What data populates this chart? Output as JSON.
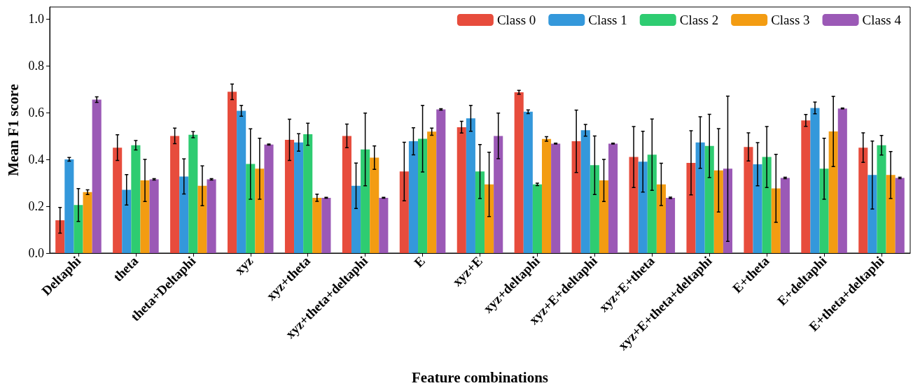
{
  "chart_data": {
    "type": "bar",
    "xlabel": "Feature combinations",
    "ylabel": "Mean F1 score",
    "categories": [
      "Deltaphi",
      "theta",
      "theta+Deltaphi",
      "xyz",
      "xyz+theta",
      "xyz+theta+deltaphi",
      "E",
      "xyz+E",
      "xyz+deltaphi",
      "xyz+E+deltaphi",
      "xyz+E+theta",
      "xyz+E+theta+deltaphi",
      "E+theta",
      "E+deltaphi",
      "E+theta+deltaphi"
    ],
    "series": [
      {
        "name": "Class 0",
        "color": "#e74c3c",
        "values": [
          0.14,
          0.45,
          0.5,
          0.688,
          0.483,
          0.5,
          0.348,
          0.537,
          0.686,
          0.477,
          0.41,
          0.385,
          0.453,
          0.566,
          0.45
        ],
        "errors": [
          0.055,
          0.055,
          0.033,
          0.033,
          0.088,
          0.05,
          0.125,
          0.025,
          0.008,
          0.133,
          0.13,
          0.137,
          0.06,
          0.025,
          0.063
        ]
      },
      {
        "name": "Class 1",
        "color": "#3498db",
        "values": [
          0.4,
          0.27,
          0.327,
          0.607,
          0.472,
          0.287,
          0.477,
          0.575,
          0.603,
          0.524,
          0.39,
          0.472,
          0.379,
          0.619,
          0.333
        ],
        "errors": [
          0.008,
          0.065,
          0.075,
          0.023,
          0.037,
          0.097,
          0.058,
          0.055,
          0.008,
          0.025,
          0.13,
          0.11,
          0.092,
          0.025,
          0.145
        ]
      },
      {
        "name": "Class 2",
        "color": "#2ecc71",
        "values": [
          0.205,
          0.46,
          0.505,
          0.38,
          0.507,
          0.442,
          0.488,
          0.348,
          0.293,
          0.375,
          0.42,
          0.457,
          0.41,
          0.36,
          0.46
        ],
        "errors": [
          0.07,
          0.02,
          0.013,
          0.15,
          0.047,
          0.155,
          0.142,
          0.115,
          0.005,
          0.125,
          0.152,
          0.135,
          0.13,
          0.13,
          0.042
        ]
      },
      {
        "name": "Class 3",
        "color": "#f39c12",
        "values": [
          0.26,
          0.31,
          0.287,
          0.36,
          0.236,
          0.407,
          0.518,
          0.293,
          0.487,
          0.31,
          0.293,
          0.353,
          0.276,
          0.519,
          0.333
        ],
        "errors": [
          0.01,
          0.09,
          0.085,
          0.13,
          0.015,
          0.05,
          0.015,
          0.137,
          0.01,
          0.09,
          0.09,
          0.178,
          0.145,
          0.15,
          0.1
        ]
      },
      {
        "name": "Class 4",
        "color": "#9b59b6",
        "values": [
          0.655,
          0.315,
          0.315,
          0.463,
          0.236,
          0.236,
          0.613,
          0.5,
          0.467,
          0.467,
          0.236,
          0.36,
          0.321,
          0.617,
          0.321
        ],
        "errors": [
          0.012,
          0.003,
          0.003,
          0.002,
          0.002,
          0.002,
          0.003,
          0.097,
          0.002,
          0.002,
          0.003,
          0.31,
          0.003,
          0.002,
          0.003
        ]
      }
    ],
    "ylim": [
      0,
      1.05
    ],
    "yticks": [
      {
        "value": 0,
        "label": "0.0"
      },
      {
        "value": 0.2,
        "label": "0.2"
      },
      {
        "value": 0.4,
        "label": "0.4"
      },
      {
        "value": 0.6,
        "label": "0.6"
      },
      {
        "value": 0.8,
        "label": "0.8"
      },
      {
        "value": 1,
        "label": "1.0"
      }
    ],
    "legend": "top right",
    "grid": false
  }
}
